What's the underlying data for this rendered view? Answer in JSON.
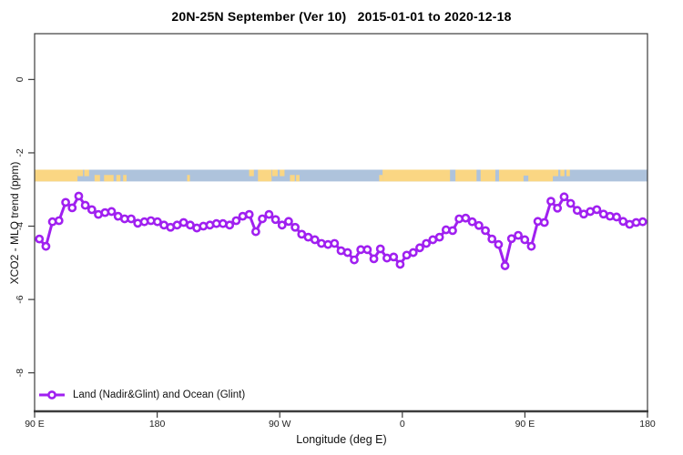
{
  "title": "20N-25N September (Ver 10)   2015-01-01 to 2020-12-18",
  "axes": {
    "x_title": "Longitude (deg E)",
    "y_title": "XCO2 - MLO trend (ppm)"
  },
  "legend": {
    "label": "Land (Nadir&Glint) and Ocean (Glint)",
    "marker": "open-circle",
    "color": "#a020f0"
  },
  "colors": {
    "series": "#a020f0",
    "marker_fill": "#ffffff",
    "ocean": "#aec3dc",
    "land": "#fad683",
    "axis": "#3c3c3c",
    "tick_text": "#222222"
  },
  "chart_data": {
    "type": "line",
    "title": "20N-25N September (Ver 10)   2015-01-01 to 2020-12-18",
    "xlabel": "Longitude (deg E)",
    "ylabel": "XCO2 - MLO trend (ppm)",
    "xlim": [
      90,
      540
    ],
    "ylim": [
      -9.05,
      1.25
    ],
    "grid": false,
    "legend_position": "bottom-left",
    "x_ticks": [
      {
        "x": 90,
        "label": "90 E"
      },
      {
        "x": 180,
        "label": "180"
      },
      {
        "x": 270,
        "label": "90 W"
      },
      {
        "x": 360,
        "label": "0"
      },
      {
        "x": 450,
        "label": "90 E"
      },
      {
        "x": 540,
        "label": "180"
      }
    ],
    "y_ticks": [
      {
        "y": 0,
        "label": "0"
      },
      {
        "y": -2,
        "label": "-2"
      },
      {
        "y": -4,
        "label": "-4"
      },
      {
        "y": -6,
        "label": "-6"
      },
      {
        "y": -8,
        "label": "-8"
      }
    ],
    "series": [
      {
        "name": "Land (Nadir&Glint) and Ocean (Glint)",
        "color": "#a020f0",
        "marker": "open-circle",
        "x": [
          93.5,
          98.3,
          103.1,
          107.9,
          112.8,
          117.6,
          122.4,
          127.2,
          132.0,
          136.8,
          141.7,
          146.5,
          151.3,
          156.1,
          160.9,
          165.7,
          170.6,
          175.4,
          180.2,
          185.0,
          189.8,
          194.6,
          199.4,
          204.3,
          209.1,
          213.9,
          218.7,
          223.5,
          228.3,
          233.2,
          238.0,
          242.8,
          247.6,
          252.4,
          257.2,
          262.1,
          266.9,
          271.7,
          276.5,
          281.3,
          286.1,
          290.9,
          295.8,
          300.6,
          305.4,
          310.2,
          315.0,
          319.8,
          324.7,
          329.5,
          334.3,
          339.1,
          343.9,
          348.7,
          353.6,
          358.4,
          363.2,
          368.0,
          372.8,
          377.6,
          382.4,
          387.3,
          392.1,
          396.9,
          401.7,
          406.5,
          411.3,
          416.2,
          421.0,
          425.8,
          430.6,
          435.4,
          440.2,
          445.1,
          449.9,
          454.7,
          459.5,
          464.3,
          469.1,
          473.9,
          478.8,
          483.6,
          488.4,
          493.2,
          498.0,
          502.8,
          507.7,
          512.5,
          517.3,
          522.1,
          526.9,
          531.7,
          536.5
        ],
        "values": [
          -4.35,
          -4.55,
          -3.88,
          -3.85,
          -3.35,
          -3.5,
          -3.18,
          -3.43,
          -3.55,
          -3.68,
          -3.63,
          -3.6,
          -3.73,
          -3.8,
          -3.8,
          -3.92,
          -3.88,
          -3.85,
          -3.88,
          -3.97,
          -4.03,
          -3.97,
          -3.9,
          -3.97,
          -4.05,
          -4.0,
          -3.97,
          -3.93,
          -3.93,
          -3.97,
          -3.85,
          -3.73,
          -3.68,
          -4.15,
          -3.8,
          -3.68,
          -3.82,
          -3.97,
          -3.87,
          -4.03,
          -4.22,
          -4.3,
          -4.37,
          -4.47,
          -4.5,
          -4.47,
          -4.67,
          -4.72,
          -4.92,
          -4.64,
          -4.64,
          -4.89,
          -4.62,
          -4.87,
          -4.84,
          -5.04,
          -4.79,
          -4.72,
          -4.59,
          -4.47,
          -4.37,
          -4.3,
          -4.1,
          -4.12,
          -3.8,
          -3.78,
          -3.88,
          -3.98,
          -4.12,
          -4.35,
          -4.5,
          -5.08,
          -4.34,
          -4.25,
          -4.37,
          -4.55,
          -3.87,
          -3.9,
          -3.32,
          -3.51,
          -3.2,
          -3.38,
          -3.57,
          -3.67,
          -3.6,
          -3.55,
          -3.67,
          -3.73,
          -3.75,
          -3.87,
          -3.95,
          -3.9,
          -3.88
        ]
      }
    ],
    "map_strip": {
      "description": "land/ocean strip for 20N-25N latitude band",
      "ppm_top": -2.46,
      "ppm_bottom": -2.78,
      "ocean_color": "#aec3dc",
      "land_color": "#fad683",
      "land_segments_lon": [
        [
          90,
          121.5
        ],
        [
          254,
          264
        ],
        [
          345.5,
          395
        ],
        [
          399,
          414.5
        ],
        [
          417.5,
          428.3
        ],
        [
          431,
          470.5
        ]
      ],
      "land_specks_lon": [
        {
          "from": 121.5,
          "to": 125.5,
          "pos": "top"
        },
        {
          "from": 126.5,
          "to": 130.0,
          "pos": "top"
        },
        {
          "from": 134.0,
          "to": 138.0,
          "pos": "bottom"
        },
        {
          "from": 141.0,
          "to": 148.0,
          "pos": "bottom"
        },
        {
          "from": 150.0,
          "to": 153.0,
          "pos": "bottom"
        },
        {
          "from": 155.0,
          "to": 157.5,
          "pos": "bottom"
        },
        {
          "from": 202.0,
          "to": 204.0,
          "pos": "bottom"
        },
        {
          "from": 247.5,
          "to": 251.0,
          "pos": "top"
        },
        {
          "from": 264.5,
          "to": 268.5,
          "pos": "top"
        },
        {
          "from": 270.0,
          "to": 273.5,
          "pos": "top"
        },
        {
          "from": 277.5,
          "to": 281.0,
          "pos": "bottom"
        },
        {
          "from": 282.0,
          "to": 284.5,
          "pos": "bottom"
        },
        {
          "from": 343.0,
          "to": 345.5,
          "pos": "bottom"
        },
        {
          "from": 470.5,
          "to": 474.5,
          "pos": "top"
        },
        {
          "from": 476.0,
          "to": 479.0,
          "pos": "top"
        },
        {
          "from": 480.5,
          "to": 483.0,
          "pos": "top"
        }
      ],
      "ocean_notches_lon": [
        {
          "from": 449.0,
          "to": 452.5,
          "pos": "bottom"
        },
        {
          "from": 428.3,
          "to": 431.0,
          "pos": "bottom"
        }
      ]
    }
  }
}
